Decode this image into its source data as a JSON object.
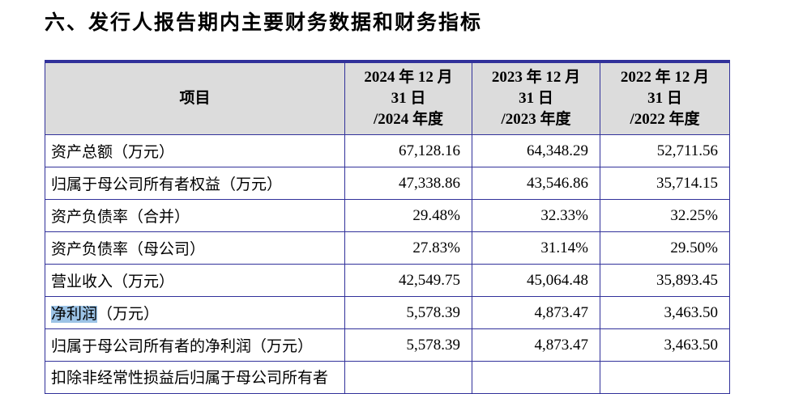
{
  "page": {
    "title": "六、发行人报告期内主要财务数据和财务指标"
  },
  "colors": {
    "table_border": "#31319a",
    "header_background": "#dcdcdc",
    "selection_highlight": "#9cc3e6",
    "text": "#000000",
    "page_background": "#ffffff"
  },
  "table": {
    "header": {
      "item": "项目",
      "col_2024": "2024 年 12 月\n31 日\n/2024 年度",
      "col_2023": "2023 年 12 月\n31 日\n/2023 年度",
      "col_2022": "2022 年 12 月\n31 日\n/2022 年度"
    },
    "rows": [
      {
        "label": "资产总额（万元）",
        "values": [
          "67,128.16",
          "64,348.29",
          "52,711.56"
        ]
      },
      {
        "label": "归属于母公司所有者权益（万元）",
        "values": [
          "47,338.86",
          "43,546.86",
          "35,714.15"
        ]
      },
      {
        "label": "资产负债率（合并）",
        "values": [
          "29.48%",
          "32.33%",
          "32.25%"
        ]
      },
      {
        "label": "资产负债率（母公司）",
        "values": [
          "27.83%",
          "31.14%",
          "29.50%"
        ]
      },
      {
        "label": "营业收入（万元）",
        "values": [
          "42,549.75",
          "45,064.48",
          "35,893.45"
        ]
      },
      {
        "label_highlight": "净利润",
        "label_rest": "（万元）",
        "values": [
          "5,578.39",
          "4,873.47",
          "3,463.50"
        ]
      },
      {
        "label": "归属于母公司所有者的净利润（万元）",
        "values": [
          "5,578.39",
          "4,873.47",
          "3,463.50"
        ]
      },
      {
        "label": "扣除非经常性损益后归属于母公司所有者",
        "values": [
          "",
          "",
          ""
        ]
      }
    ]
  }
}
